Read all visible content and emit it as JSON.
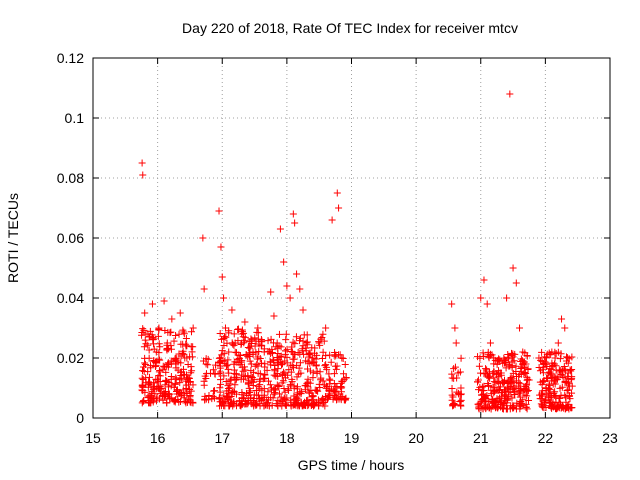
{
  "chart_data": {
    "type": "scatter",
    "title": "Day 220 of 2018, Rate Of TEC Index for receiver mtcv",
    "xlabel": "GPS time / hours",
    "ylabel": "ROTI / TECUs",
    "xlim": [
      15,
      23
    ],
    "ylim": [
      0,
      0.12
    ],
    "x_ticks": [
      "15",
      "16",
      "17",
      "18",
      "19",
      "20",
      "21",
      "22",
      "23"
    ],
    "y_ticks": [
      "0",
      "0.02",
      "0.04",
      "0.06",
      "0.08",
      "0.1",
      "0.12"
    ],
    "grid": true,
    "marker": "+",
    "color": "#ff0000",
    "series": [
      {
        "name": "ROTI",
        "x": [
          15.76,
          15.77,
          15.8,
          15.85,
          15.92,
          15.98,
          16.02,
          16.1,
          16.15,
          16.22,
          16.28,
          16.35,
          16.42,
          16.48,
          16.55,
          16.7,
          16.72,
          16.75,
          16.95,
          16.98,
          17.0,
          17.02,
          17.05,
          17.1,
          17.15,
          17.2,
          17.3,
          17.35,
          17.45,
          17.55,
          17.65,
          17.75,
          17.8,
          17.85,
          17.9,
          17.95,
          18.0,
          18.05,
          18.1,
          18.12,
          18.15,
          18.2,
          18.25,
          18.3,
          18.4,
          18.5,
          18.6,
          18.7,
          18.78,
          18.8,
          18.85,
          20.55,
          20.6,
          20.62,
          20.65,
          20.7,
          20.95,
          21.0,
          21.05,
          21.1,
          21.15,
          21.2,
          21.3,
          21.4,
          21.45,
          21.5,
          21.55,
          21.6,
          21.65,
          21.7,
          21.9,
          22.0,
          22.05,
          22.1,
          22.15,
          22.2,
          22.25,
          22.3,
          22.35
        ],
        "y": [
          0.085,
          0.081,
          0.035,
          0.028,
          0.038,
          0.022,
          0.03,
          0.039,
          0.025,
          0.033,
          0.018,
          0.035,
          0.02,
          0.012,
          0.03,
          0.06,
          0.043,
          0.018,
          0.069,
          0.057,
          0.047,
          0.04,
          0.03,
          0.022,
          0.036,
          0.025,
          0.028,
          0.032,
          0.018,
          0.03,
          0.022,
          0.042,
          0.034,
          0.025,
          0.063,
          0.052,
          0.044,
          0.04,
          0.068,
          0.065,
          0.048,
          0.043,
          0.036,
          0.025,
          0.02,
          0.025,
          0.03,
          0.066,
          0.075,
          0.07,
          0.02,
          0.038,
          0.03,
          0.025,
          0.015,
          0.008,
          0.012,
          0.04,
          0.046,
          0.038,
          0.025,
          0.02,
          0.015,
          0.04,
          0.108,
          0.05,
          0.045,
          0.03,
          0.022,
          0.018,
          0.02,
          0.018,
          0.015,
          0.022,
          0.02,
          0.025,
          0.033,
          0.03,
          0.012
        ]
      }
    ],
    "clusters": [
      {
        "from": 15.75,
        "to": 16.55,
        "base": 0.005,
        "top": 0.03,
        "count": 260
      },
      {
        "from": 16.7,
        "to": 16.9,
        "base": 0.006,
        "top": 0.02,
        "count": 25
      },
      {
        "from": 16.95,
        "to": 17.6,
        "base": 0.004,
        "top": 0.03,
        "count": 230
      },
      {
        "from": 17.6,
        "to": 18.6,
        "base": 0.004,
        "top": 0.028,
        "count": 300
      },
      {
        "from": 18.6,
        "to": 18.92,
        "base": 0.006,
        "top": 0.022,
        "count": 70
      },
      {
        "from": 20.55,
        "to": 20.7,
        "base": 0.004,
        "top": 0.02,
        "count": 30
      },
      {
        "from": 20.95,
        "to": 21.75,
        "base": 0.003,
        "top": 0.022,
        "count": 280
      },
      {
        "from": 21.9,
        "to": 22.42,
        "base": 0.003,
        "top": 0.022,
        "count": 180
      }
    ]
  }
}
